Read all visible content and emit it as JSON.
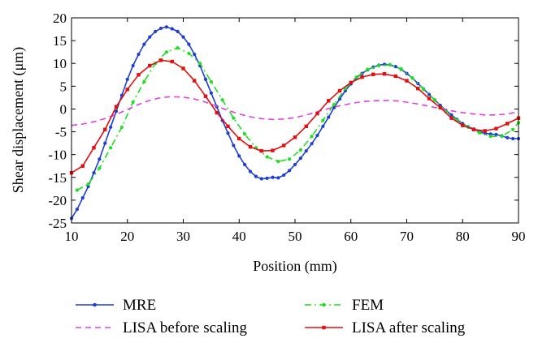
{
  "chart_data": {
    "type": "line",
    "title": "",
    "xlabel": "Position (mm)",
    "ylabel": "Shear displacement (μm)",
    "xlim": [
      10,
      90
    ],
    "ylim": [
      -25,
      20
    ],
    "xticks": [
      10,
      20,
      30,
      40,
      50,
      60,
      70,
      80,
      90
    ],
    "yticks": [
      20,
      15,
      10,
      5,
      0,
      -5,
      -10,
      -15,
      -20,
      -25
    ],
    "grid": false,
    "legend_position": "bottom",
    "series": [
      {
        "name": "MRE",
        "color": "#1f3fd0",
        "style": "solid",
        "marker": "dot",
        "x": [
          10,
          11,
          12,
          13,
          14,
          15,
          16,
          17,
          18,
          19,
          20,
          21,
          22,
          23,
          24,
          25,
          26,
          27,
          28,
          29,
          30,
          31,
          32,
          33,
          34,
          35,
          36,
          37,
          38,
          39,
          40,
          41,
          42,
          43,
          44,
          45,
          46,
          47,
          48,
          49,
          50,
          51,
          52,
          53,
          54,
          55,
          56,
          57,
          58,
          59,
          60,
          61,
          62,
          63,
          64,
          65,
          66,
          67,
          68,
          69,
          70,
          71,
          72,
          73,
          74,
          75,
          76,
          77,
          78,
          79,
          80,
          81,
          82,
          83,
          84,
          85,
          86,
          87,
          88,
          89,
          90
        ],
        "y": [
          -24,
          -22,
          -19.5,
          -17,
          -14,
          -11,
          -7.5,
          -4,
          -0.5,
          3,
          6.5,
          9.5,
          12,
          14.2,
          15.8,
          17,
          17.7,
          18,
          17.6,
          17,
          15.8,
          14.2,
          12,
          9.5,
          6.5,
          3.5,
          0.5,
          -2.5,
          -5.3,
          -8,
          -10.3,
          -12.2,
          -13.7,
          -14.8,
          -15.3,
          -15.2,
          -15,
          -15.1,
          -14.5,
          -13.5,
          -12.2,
          -10.8,
          -9.2,
          -7.6,
          -5.8,
          -3.8,
          -1.8,
          0.3,
          2.2,
          4,
          5.5,
          6.8,
          7.8,
          8.6,
          9.2,
          9.6,
          9.8,
          9.7,
          9.3,
          8.7,
          7.8,
          6.8,
          5.6,
          4.4,
          3.2,
          2,
          0.8,
          -0.3,
          -1.3,
          -2.3,
          -3.2,
          -3.9,
          -4.4,
          -4.9,
          -5.3,
          -5.5,
          -5.6,
          -5.9,
          -6.3,
          -6.5,
          -6.5
        ]
      },
      {
        "name": "FEM",
        "color": "#22dd22",
        "style": "dashdot",
        "marker": "dot",
        "x": [
          11,
          13,
          15,
          17,
          19,
          21,
          23,
          25,
          27,
          29,
          31,
          33,
          35,
          37,
          39,
          41,
          43,
          45,
          47,
          49,
          51,
          53,
          55,
          57,
          59,
          61,
          63,
          65,
          67,
          69,
          71,
          73,
          75,
          77,
          79,
          81,
          83,
          85,
          87,
          89,
          90
        ],
        "y": [
          -17.8,
          -16.5,
          -13,
          -8.5,
          -4,
          1.5,
          6,
          10,
          12.5,
          13.4,
          12.2,
          10,
          6,
          2,
          -2,
          -5.5,
          -8.5,
          -10.5,
          -11.5,
          -11,
          -9,
          -6,
          -2.5,
          1,
          4.5,
          7,
          8.7,
          9.5,
          9.7,
          8.8,
          6.8,
          4.3,
          2,
          -0.5,
          -2.5,
          -4,
          -5.2,
          -6,
          -6,
          -4.5,
          -3
        ]
      },
      {
        "name": "LISA before scaling",
        "color": "#e040e0",
        "style": "dashed",
        "marker": "none",
        "x": [
          10,
          12,
          14,
          16,
          18,
          20,
          22,
          24,
          26,
          28,
          30,
          32,
          34,
          36,
          38,
          40,
          42,
          44,
          46,
          48,
          50,
          52,
          54,
          56,
          58,
          60,
          62,
          64,
          66,
          68,
          70,
          72,
          74,
          76,
          78,
          80,
          82,
          84,
          86,
          88,
          90
        ],
        "y": [
          -3.6,
          -3.3,
          -2.8,
          -2.1,
          -1.2,
          -0.1,
          1.0,
          1.9,
          2.5,
          2.7,
          2.6,
          2.2,
          1.5,
          0.6,
          -0.3,
          -1.1,
          -1.7,
          -2.1,
          -2.3,
          -2.2,
          -1.9,
          -1.3,
          -0.6,
          0.1,
          0.7,
          1.2,
          1.6,
          1.8,
          1.9,
          1.8,
          1.5,
          1.1,
          0.6,
          0.1,
          -0.4,
          -0.8,
          -1.1,
          -1.3,
          -1.3,
          -1.1,
          -0.6
        ]
      },
      {
        "name": "LISA after scaling",
        "color": "#e01010",
        "style": "solid",
        "marker": "square",
        "x": [
          10,
          12,
          14,
          16,
          18,
          20,
          22,
          24,
          26,
          28,
          30,
          32,
          34,
          36,
          38,
          40,
          42,
          44,
          46,
          48,
          50,
          52,
          54,
          56,
          58,
          60,
          62,
          64,
          66,
          68,
          70,
          72,
          74,
          76,
          78,
          80,
          82,
          84,
          86,
          88,
          90
        ],
        "y": [
          -14,
          -12.5,
          -8.5,
          -4.5,
          0.5,
          4.3,
          7.5,
          9.5,
          10.7,
          10.4,
          8.9,
          6.2,
          2.8,
          -0.8,
          -3.8,
          -6.5,
          -8.3,
          -9.2,
          -9.1,
          -8.0,
          -6.2,
          -3.8,
          -1.0,
          1.8,
          4.0,
          5.8,
          7.0,
          7.6,
          7.7,
          7.2,
          6.2,
          4.5,
          2.3,
          0.3,
          -2.0,
          -3.6,
          -4.5,
          -4.8,
          -4.3,
          -3.2,
          -2.0
        ]
      }
    ]
  }
}
